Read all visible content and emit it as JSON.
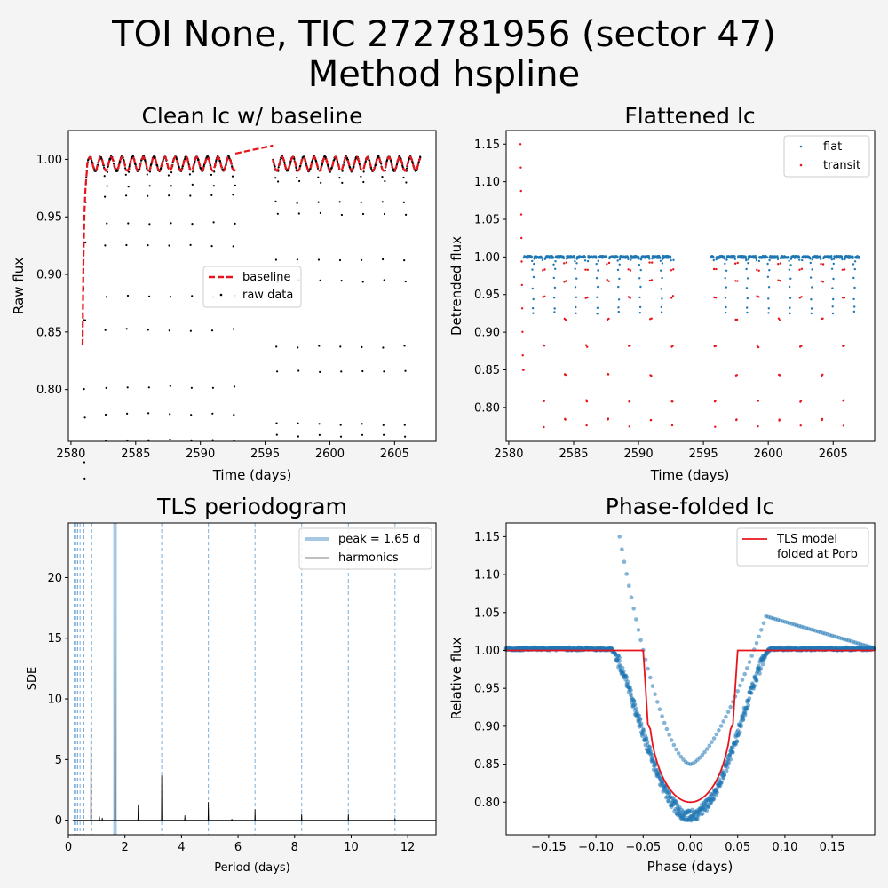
{
  "figure": {
    "title_line1": "TOI None, TIC 272781956 (sector 47)",
    "title_line2": "Method hspline",
    "background": "#f4f4f4"
  },
  "chart_data": [
    {
      "type": "scatter",
      "title": "Clean lc w/ baseline",
      "xlabel": "Time (days)",
      "ylabel": "Raw flux",
      "xlim": [
        2579.8,
        2608.2
      ],
      "ylim": [
        0.755,
        1.025
      ],
      "xticks": [
        2580,
        2585,
        2590,
        2595,
        2600,
        2605
      ],
      "xtick_labels": [
        "2580",
        "2585",
        "2590",
        "2595",
        "2600",
        "2605"
      ],
      "yticks": [
        0.8,
        0.85,
        0.9,
        0.95,
        1.0
      ],
      "ytick_labels": [
        "0.80",
        "0.85",
        "0.90",
        "0.95",
        "1.00"
      ],
      "legend": {
        "position": "center-right",
        "entries": [
          "baseline",
          "raw data"
        ]
      },
      "series": [
        {
          "name": "baseline",
          "style": "dashed-line",
          "color": "#e8141b"
        },
        {
          "name": "raw data",
          "style": "points",
          "color": "#000000"
        }
      ],
      "segments": [
        [
          2580.9,
          2592.7
        ],
        [
          2595.6,
          2607.0
        ]
      ],
      "eclipse_times": [
        2581.05,
        2582.7,
        2584.35,
        2586.0,
        2587.65,
        2589.3,
        2590.95,
        2592.6,
        2595.9,
        2597.55,
        2599.2,
        2600.85,
        2602.5,
        2604.15,
        2605.8
      ],
      "eclipse_depth": 0.235,
      "baseline_gap": {
        "x": [
          2592.7,
          2595.6
        ],
        "y": [
          1.005,
          1.012
        ]
      }
    },
    {
      "type": "scatter",
      "title": "Flattened lc",
      "xlabel": "Time (days)",
      "ylabel": "Detrended flux",
      "xlim": [
        2579.8,
        2608.2
      ],
      "ylim": [
        0.755,
        1.168
      ],
      "xticks": [
        2580,
        2585,
        2590,
        2595,
        2600,
        2605
      ],
      "xtick_labels": [
        "2580",
        "2585",
        "2590",
        "2595",
        "2600",
        "2605"
      ],
      "yticks": [
        0.8,
        0.85,
        0.9,
        0.95,
        1.0,
        1.05,
        1.1,
        1.15
      ],
      "ytick_labels": [
        "0.80",
        "0.85",
        "0.90",
        "0.95",
        "1.00",
        "1.05",
        "1.10",
        "1.15"
      ],
      "legend": {
        "position": "top-right",
        "entries": [
          "flat",
          "transit"
        ]
      },
      "series": [
        {
          "name": "flat",
          "color": "#1f77b4"
        },
        {
          "name": "transit",
          "color": "#e8141b"
        }
      ],
      "transit_times": [
        2581.05,
        2582.7,
        2584.35,
        2586.0,
        2587.65,
        2589.3,
        2590.95,
        2592.6,
        2595.9,
        2597.55,
        2599.2,
        2600.85,
        2602.5,
        2604.15,
        2605.8
      ],
      "transit_depth": 0.225,
      "secondary_times": [
        2581.875,
        2583.525,
        2585.175,
        2586.825,
        2588.475,
        2590.125,
        2591.775,
        2596.725,
        2598.375,
        2600.025,
        2601.675,
        2603.325,
        2604.975,
        2606.625
      ],
      "secondary_depth": 0.075,
      "start_spike": {
        "x": 2581.0,
        "y": 1.15
      }
    },
    {
      "type": "line",
      "title": "TLS periodogram",
      "xlabel": "Period (days)",
      "ylabel": "SDE",
      "xlim": [
        0,
        13
      ],
      "ylim": [
        -1.2,
        24.5
      ],
      "xticks": [
        0,
        2,
        4,
        6,
        8,
        10,
        12
      ],
      "xtick_labels": [
        "0",
        "2",
        "4",
        "6",
        "8",
        "10",
        "12"
      ],
      "yticks": [
        0,
        5,
        10,
        15,
        20
      ],
      "ytick_labels": [
        "0",
        "5",
        "10",
        "15",
        "20"
      ],
      "legend": {
        "position": "top-right",
        "entries": [
          "peak = 1.65 d",
          "harmonics"
        ]
      },
      "peak_period": 1.65,
      "harmonics": [
        0.2063,
        0.2357,
        0.275,
        0.33,
        0.4125,
        0.55,
        0.825,
        3.3,
        4.95,
        6.6,
        8.25,
        9.9,
        11.55
      ],
      "spikes": [
        {
          "x": 0.8,
          "y": 12.4
        },
        {
          "x": 1.1,
          "y": 0.3
        },
        {
          "x": 1.2,
          "y": 0.2
        },
        {
          "x": 1.65,
          "y": 23.4
        },
        {
          "x": 2.47,
          "y": 1.3
        },
        {
          "x": 3.3,
          "y": 3.7
        },
        {
          "x": 4.12,
          "y": 0.4
        },
        {
          "x": 4.95,
          "y": 1.5
        },
        {
          "x": 5.78,
          "y": 0.1
        },
        {
          "x": 6.6,
          "y": 0.9
        },
        {
          "x": 8.25,
          "y": 0.5
        },
        {
          "x": 9.9,
          "y": 0.5
        },
        {
          "x": 11.55,
          "y": 0.15
        }
      ],
      "colors": {
        "peak": "#a6c8e2",
        "harmonic": "#7fb0d9",
        "line": "#000000"
      }
    },
    {
      "type": "scatter",
      "title": "Phase-folded lc",
      "xlabel": "Phase (days)",
      "ylabel": "Relative flux",
      "xlim": [
        -0.195,
        0.195
      ],
      "ylim": [
        0.757,
        1.168
      ],
      "xticks": [
        -0.15,
        -0.1,
        -0.05,
        0.0,
        0.05,
        0.1,
        0.15
      ],
      "xtick_labels": [
        "−0.15",
        "−0.10",
        "−0.05",
        "0.00",
        "0.05",
        "0.10",
        "0.15"
      ],
      "yticks": [
        0.8,
        0.85,
        0.9,
        0.95,
        1.0,
        1.05,
        1.1,
        1.15
      ],
      "ytick_labels": [
        "0.80",
        "0.85",
        "0.90",
        "0.95",
        "1.00",
        "1.05",
        "1.10",
        "1.15"
      ],
      "legend": {
        "position": "top-right",
        "entries": [
          "TLS model\nfolded at Porb"
        ]
      },
      "model": {
        "name": "TLS model\nfolded at Porb",
        "color": "#e8141b",
        "t14": 0.1,
        "depth": 0.2
      },
      "data_color": "#1f77b4",
      "eclipse": {
        "center": 0.0,
        "depth": 0.22,
        "half_width": 0.085
      },
      "anomaly": {
        "start_phase": -0.075,
        "start_flux": 1.15,
        "min_flux": 0.85,
        "peak_phase": 0.08,
        "peak_flux": 1.045,
        "end_flux": 1.003
      }
    }
  ]
}
